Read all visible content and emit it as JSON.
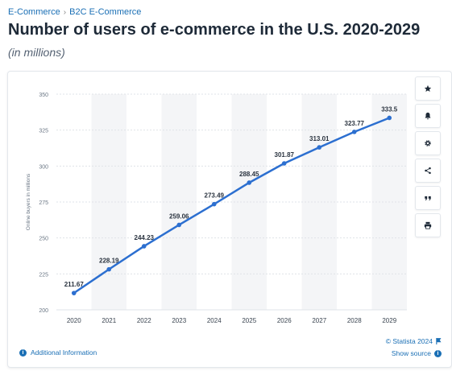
{
  "breadcrumb": {
    "items": [
      "E-Commerce",
      "B2C E-Commerce"
    ],
    "separator": "›"
  },
  "page": {
    "title": "Number of users of e-commerce in the U.S. 2020-2029",
    "subtitle": "(in millions)"
  },
  "toolbar": {
    "buttons": [
      "star-icon",
      "bell-icon",
      "gear-icon",
      "share-icon",
      "quote-icon",
      "print-icon"
    ]
  },
  "footer": {
    "credit": "© Statista 2024",
    "show_source": "Show source",
    "additional_info": "Additional Information"
  },
  "colors": {
    "line": "#2c6fd0",
    "accent": "#1a6fb5",
    "shade": "#f4f5f7"
  },
  "chart_data": {
    "type": "line",
    "x": [
      "2020",
      "2021",
      "2022",
      "2023",
      "2024",
      "2025",
      "2026",
      "2027",
      "2028",
      "2029"
    ],
    "series": [
      {
        "values": [
          211.67,
          228.19,
          244.23,
          259.06,
          273.49,
          288.45,
          301.87,
          313.01,
          323.77,
          333.5
        ]
      }
    ],
    "data_labels": [
      "211.67",
      "228.19",
      "244.23",
      "259.06",
      "273.49",
      "288.45",
      "301.87",
      "313.01",
      "323.77",
      "333.5"
    ],
    "ylabel": "Online buyers in millions",
    "xlabel": "",
    "ylim": [
      200,
      350
    ],
    "yticks": [
      200,
      225,
      250,
      275,
      300,
      325,
      350
    ],
    "grid": true,
    "forecast_shading_from_index": 1
  }
}
